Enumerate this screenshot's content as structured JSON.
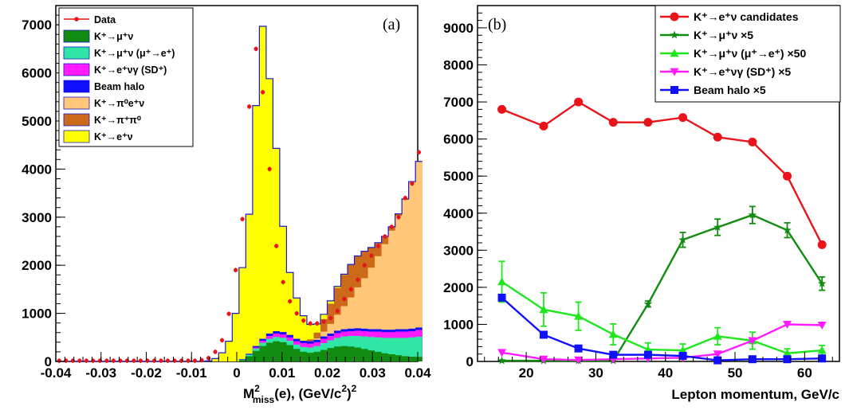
{
  "chart_data": [
    {
      "panel": "(a)",
      "type": "area",
      "stacked": true,
      "xlabel_main": "M",
      "xlabel_sup": "2",
      "xlabel_sub": "miss",
      "xlabel_rest": "(e), (GeV/c",
      "xlabel_rest_sup": "2",
      "xlabel_rest_end": ")",
      "xlabel_final_sup": "2",
      "xlim": [
        -0.04,
        0.04
      ],
      "ylim": [
        0,
        7400
      ],
      "xticks": [
        "-0.04",
        "-0.03",
        "-0.02",
        "-0.01",
        "0",
        "0.01",
        "0.02",
        "0.03",
        "0.04"
      ],
      "yticks": [
        "0",
        "1000",
        "2000",
        "3000",
        "4000",
        "5000",
        "6000",
        "7000"
      ],
      "bins": {
        "start": -0.04,
        "width": 0.0015,
        "count": 54
      },
      "legend": [
        {
          "key": "data",
          "label": "Data",
          "color": "#e8141a",
          "kind": "marker"
        },
        {
          "key": "kmu",
          "label": "K⁺→μ⁺ν",
          "color": "#118c11",
          "kind": "fill"
        },
        {
          "key": "kmue",
          "label": "K⁺→μ⁺ν (μ⁺→e⁺)",
          "color": "#2ee6a6",
          "kind": "fill"
        },
        {
          "key": "kevg",
          "label": "K⁺→e⁺νγ (SD⁺)",
          "color": "#ff1aff",
          "kind": "fill"
        },
        {
          "key": "halo",
          "label": "Beam halo",
          "color": "#1010ff",
          "kind": "fill"
        },
        {
          "key": "ke3",
          "label": "K⁺→π⁰e⁺ν",
          "color": "#ffc777",
          "kind": "fill"
        },
        {
          "key": "k2pi",
          "label": "K⁺→π⁺π⁰",
          "color": "#cc6a1a",
          "kind": "fill"
        },
        {
          "key": "ke2",
          "label": "K⁺→e⁺ν",
          "color": "#ffff00",
          "kind": "fill"
        }
      ],
      "series": [
        {
          "key": "kmu",
          "values": [
            0,
            0,
            0,
            0,
            0,
            0,
            0,
            0,
            0,
            0,
            0,
            0,
            0,
            0,
            0,
            0,
            0,
            0,
            0,
            0,
            0,
            0,
            0,
            0,
            0,
            0,
            0,
            30,
            110,
            220,
            320,
            390,
            420,
            400,
            340,
            260,
            200,
            180,
            200,
            240,
            280,
            310,
            320,
            310,
            290,
            260,
            230,
            200,
            170,
            150,
            130,
            110,
            100,
            95
          ]
        },
        {
          "key": "kmue",
          "values": [
            0,
            0,
            0,
            0,
            0,
            0,
            0,
            0,
            0,
            0,
            0,
            0,
            0,
            0,
            0,
            0,
            0,
            0,
            0,
            0,
            0,
            0,
            0,
            0,
            0,
            0,
            0,
            10,
            30,
            50,
            70,
            80,
            90,
            90,
            90,
            90,
            100,
            110,
            120,
            140,
            160,
            180,
            200,
            220,
            240,
            260,
            280,
            300,
            320,
            340,
            360,
            380,
            400,
            420
          ]
        },
        {
          "key": "kevg",
          "values": [
            0,
            0,
            0,
            0,
            0,
            0,
            0,
            0,
            0,
            0,
            0,
            0,
            0,
            0,
            0,
            0,
            0,
            0,
            0,
            0,
            0,
            0,
            0,
            0,
            0,
            0,
            0,
            0,
            0,
            20,
            40,
            60,
            70,
            70,
            70,
            70,
            80,
            80,
            80,
            90,
            90,
            100,
            100,
            100,
            110,
            110,
            110,
            120,
            120,
            120,
            130,
            130,
            130,
            140
          ]
        },
        {
          "key": "halo",
          "values": [
            0,
            0,
            0,
            0,
            0,
            0,
            0,
            0,
            0,
            0,
            0,
            0,
            0,
            0,
            0,
            0,
            0,
            0,
            0,
            0,
            0,
            0,
            0,
            0,
            0,
            0,
            0,
            10,
            20,
            30,
            40,
            50,
            50,
            50,
            50,
            50,
            50,
            50,
            50,
            50,
            50,
            50,
            50,
            50,
            50,
            50,
            50,
            50,
            50,
            50,
            50,
            50,
            50,
            50
          ]
        },
        {
          "key": "ke3",
          "values": [
            0,
            0,
            0,
            0,
            0,
            0,
            0,
            0,
            0,
            0,
            0,
            0,
            0,
            0,
            0,
            0,
            0,
            0,
            0,
            0,
            0,
            0,
            0,
            0,
            0,
            0,
            0,
            0,
            0,
            0,
            0,
            0,
            0,
            0,
            0,
            0,
            0,
            0,
            30,
            100,
            200,
            330,
            480,
            650,
            850,
            1050,
            1280,
            1520,
            1780,
            2060,
            2360,
            2690,
            3050,
            3450
          ]
        },
        {
          "key": "k2pi",
          "values": [
            0,
            0,
            0,
            0,
            0,
            0,
            0,
            0,
            0,
            0,
            0,
            0,
            0,
            0,
            0,
            0,
            0,
            0,
            0,
            0,
            0,
            0,
            0,
            0,
            0,
            0,
            0,
            0,
            0,
            0,
            0,
            0,
            0,
            0,
            0,
            0,
            0,
            40,
            120,
            260,
            420,
            560,
            650,
            680,
            650,
            560,
            420,
            280,
            160,
            80,
            40,
            20,
            10,
            5
          ]
        },
        {
          "key": "ke2",
          "values": [
            0,
            0,
            0,
            0,
            0,
            0,
            0,
            0,
            0,
            0,
            0,
            0,
            0,
            0,
            0,
            0,
            0,
            0,
            0,
            0,
            0,
            0,
            10,
            60,
            180,
            420,
            1000,
            1900,
            2900,
            5000,
            6500,
            5300,
            3800,
            2200,
            1300,
            850,
            520,
            310,
            180,
            100,
            60,
            30,
            15,
            8,
            4,
            2,
            0,
            0,
            0,
            0,
            0,
            0,
            0,
            0
          ]
        }
      ],
      "data_points": [
        15,
        15,
        15,
        15,
        15,
        15,
        15,
        15,
        15,
        15,
        15,
        15,
        15,
        15,
        15,
        15,
        15,
        15,
        15,
        15,
        15,
        25,
        70,
        200,
        440,
        990,
        1900,
        2960,
        5300,
        6500,
        5600,
        4000,
        2400,
        1650,
        1250,
        1000,
        850,
        790,
        790,
        830,
        900,
        1050,
        1300,
        1500,
        1700,
        2000,
        2200,
        2400,
        2600,
        2800,
        3000,
        3400,
        3700,
        4350
      ]
    },
    {
      "panel": "(b)",
      "type": "line",
      "xlabel": "Lepton momentum, GeV/c",
      "xlim": [
        13,
        65
      ],
      "ylim": [
        0,
        9600
      ],
      "xticks": [
        "20",
        "30",
        "40",
        "50",
        "60"
      ],
      "xtick_values": [
        20,
        30,
        40,
        50,
        60
      ],
      "yticks": [
        "0",
        "1000",
        "2000",
        "3000",
        "4000",
        "5000",
        "6000",
        "7000",
        "8000",
        "9000"
      ],
      "ytick_values": [
        0,
        1000,
        2000,
        3000,
        4000,
        5000,
        6000,
        7000,
        8000,
        9000
      ],
      "x": [
        16.5,
        22.5,
        27.5,
        32.5,
        37.5,
        42.5,
        47.5,
        52.5,
        57.5,
        62.5
      ],
      "series": [
        {
          "name": "K⁺→e⁺ν candidates",
          "color": "#e8141a",
          "marker": "circle",
          "values": [
            6800,
            6350,
            7000,
            6450,
            6450,
            6580,
            6050,
            5920,
            5000,
            3150
          ],
          "errors": [
            0,
            0,
            0,
            0,
            0,
            0,
            0,
            0,
            0,
            0
          ]
        },
        {
          "name": "K⁺→μ⁺ν ×5",
          "color": "#118c11",
          "marker": "star",
          "values": [
            20,
            20,
            20,
            20,
            1550,
            3280,
            3620,
            3950,
            3540,
            2100
          ],
          "errors": [
            0,
            0,
            0,
            0,
            80,
            200,
            220,
            230,
            200,
            180
          ]
        },
        {
          "name": "K⁺→μ⁺ν (μ⁺→e⁺) ×50",
          "color": "#1fe61f",
          "marker": "triangle-up",
          "values": [
            2150,
            1400,
            1220,
            730,
            320,
            300,
            680,
            560,
            220,
            300
          ],
          "errors": [
            550,
            450,
            380,
            280,
            180,
            170,
            230,
            230,
            120,
            130
          ]
        },
        {
          "name": "K⁺→e⁺νγ (SD⁺) ×5",
          "color": "#ff1aff",
          "marker": "triangle-down",
          "values": [
            240,
            60,
            40,
            60,
            80,
            100,
            200,
            560,
            1000,
            980
          ],
          "errors": [
            0,
            0,
            0,
            0,
            0,
            0,
            0,
            0,
            0,
            0
          ]
        },
        {
          "name": "Beam halo ×5",
          "color": "#1010ff",
          "marker": "square",
          "values": [
            1720,
            720,
            350,
            180,
            180,
            150,
            30,
            60,
            60,
            80
          ],
          "errors": [
            0,
            0,
            0,
            0,
            0,
            0,
            0,
            0,
            0,
            0
          ]
        }
      ]
    }
  ]
}
